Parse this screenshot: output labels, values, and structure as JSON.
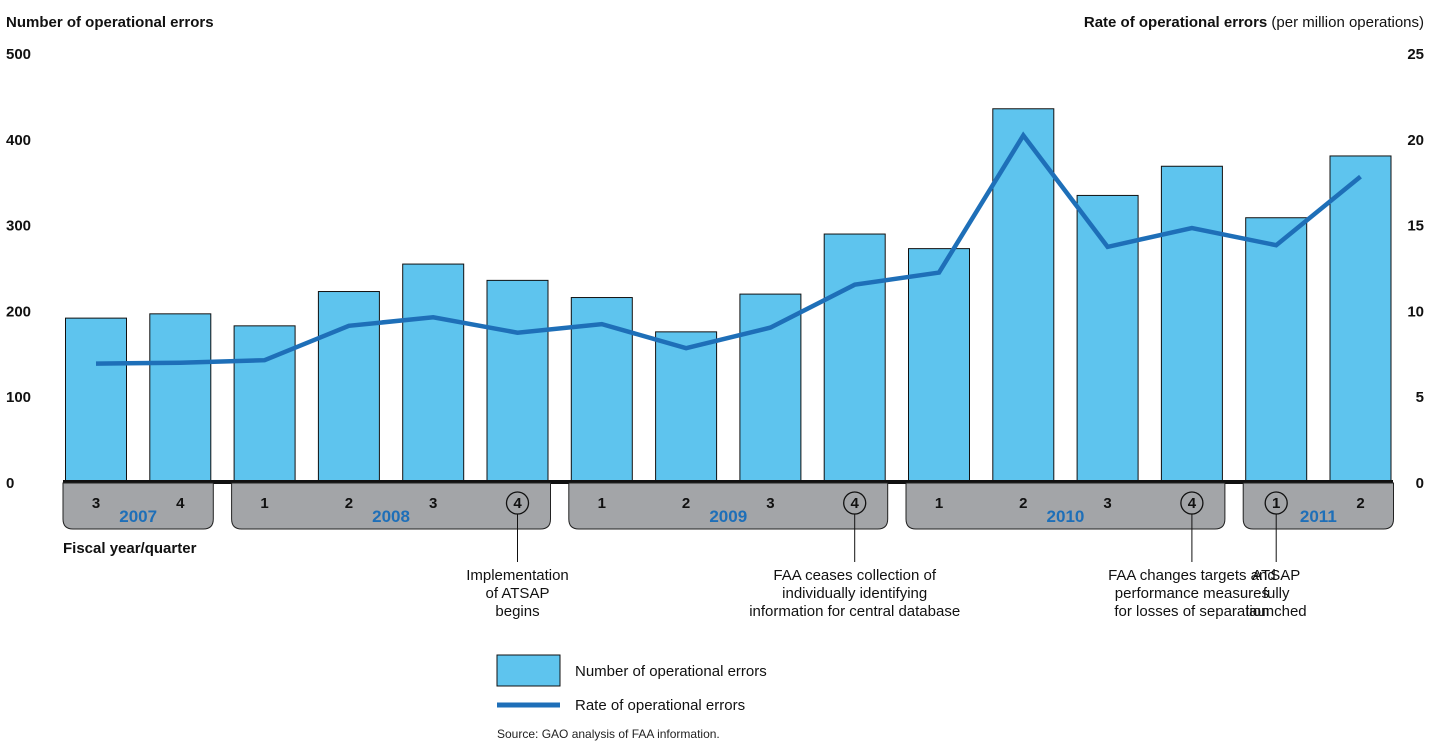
{
  "chart_data": {
    "type": "bar+line",
    "title_left": "Number of operational errors",
    "title_right_bold": "Rate of operational errors",
    "title_right_rest": " (per million operations)",
    "xlabel": "Fiscal year/quarter",
    "left_axis": {
      "ylim": [
        0,
        500
      ],
      "ticks": [
        "0",
        "100",
        "200",
        "300",
        "400",
        "500"
      ]
    },
    "right_axis": {
      "ylim": [
        0,
        25
      ],
      "ticks": [
        "0",
        "5",
        "10",
        "15",
        "20",
        "25"
      ]
    },
    "quarters": [
      "3",
      "4",
      "1",
      "2",
      "3",
      "4",
      "1",
      "2",
      "3",
      "4",
      "1",
      "2",
      "3",
      "4",
      "1",
      "2"
    ],
    "year_groups": [
      {
        "label": "2007",
        "start": 0,
        "end": 1
      },
      {
        "label": "2008",
        "start": 2,
        "end": 5
      },
      {
        "label": "2009",
        "start": 6,
        "end": 9
      },
      {
        "label": "2010",
        "start": 10,
        "end": 13
      },
      {
        "label": "2011",
        "start": 14,
        "end": 15
      }
    ],
    "circled_quarters": [
      5,
      9,
      13,
      14
    ],
    "series": [
      {
        "name": "Number of operational errors",
        "type": "bar",
        "color": "#5ec4ee",
        "values": [
          191,
          196,
          182,
          222,
          254,
          235,
          215,
          175,
          219,
          289,
          272,
          435,
          334,
          368,
          308,
          380
        ]
      },
      {
        "name": "Rate of operational errors",
        "type": "line",
        "color": "#1e6fb8",
        "values": [
          6.9,
          6.95,
          7.1,
          9.1,
          9.6,
          8.7,
          9.2,
          7.8,
          9.0,
          11.5,
          12.2,
          20.2,
          13.7,
          14.8,
          13.8,
          17.8
        ]
      }
    ],
    "annotations": [
      {
        "index": 5,
        "lines": [
          "Implementation",
          "of ATSAP",
          "begins"
        ]
      },
      {
        "index": 9,
        "lines": [
          "FAA ceases collection of",
          "individually identifying",
          "information for central database"
        ]
      },
      {
        "index": 13,
        "lines": [
          "FAA changes targets and",
          "performance measures",
          "for losses of separation"
        ]
      },
      {
        "index": 14,
        "lines": [
          "ATSAP",
          "fully",
          "launched"
        ]
      }
    ],
    "legend": {
      "bar": "Number of operational errors",
      "line": "Rate of operational errors"
    },
    "source": "Source: GAO analysis of FAA information."
  }
}
